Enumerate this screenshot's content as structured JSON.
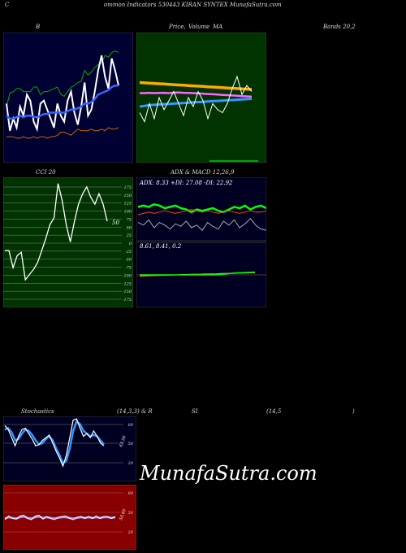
{
  "header": {
    "left": "C",
    "center": "ommon  Indicators 530443 KIRAN  SYNTEX  MunafaSutra.com"
  },
  "labels": {
    "bands_title": "B",
    "price_title_a": "Price,",
    "price_title_b": "Volume",
    "price_title_c": "MA",
    "bands_right": "Bands 20,2",
    "cci_title": "CCI 20",
    "adx_title": "ADX  & MACD 12,26,9",
    "stoch_left": "Stochastics",
    "stoch_mid": "(14,3,3) & R",
    "rsi_mid": "SI",
    "rsi_params": "(14,5",
    "rsi_close": ")"
  },
  "watermark": "MunafaSutra.com",
  "colors": {
    "bands_bg": "#000033",
    "price_bg": "#003300",
    "cci_bg": "#003300",
    "adx_bg": "#000022",
    "stoch_bg": "#000022",
    "rsi_bg": "#880000"
  },
  "chart_data": [
    {
      "id": "bollinger",
      "type": "line",
      "series": [
        {
          "color": "#00aa00",
          "values": [
            94,
            103,
            104,
            106,
            106,
            104,
            104,
            104,
            107,
            107,
            102,
            104,
            104,
            105,
            106,
            107,
            102,
            101,
            104,
            107,
            108,
            110,
            111,
            118,
            115,
            117,
            120,
            122,
            123,
            128,
            127,
            130,
            131,
            130
          ]
        },
        {
          "color": "#ffffff",
          "values": [
            96,
            78,
            86,
            80,
            94,
            88,
            102,
            98,
            84,
            79,
            96,
            98,
            92,
            86,
            80,
            96,
            88,
            84,
            98,
            104,
            90,
            82,
            94,
            110,
            88,
            92,
            104,
            118,
            128,
            114,
            106,
            126,
            118,
            108
          ]
        },
        {
          "color": "#3366ff",
          "values": [
            88,
            86,
            86,
            87,
            88,
            87,
            88,
            88,
            87,
            87,
            88,
            89,
            89,
            90,
            90,
            90,
            90,
            90,
            91,
            92,
            92,
            93,
            94,
            96,
            96,
            97,
            99,
            102,
            103,
            104,
            105,
            107,
            108,
            108
          ]
        },
        {
          "color": "#cc6600",
          "values": [
            74,
            74,
            74,
            73,
            73,
            74,
            73,
            73,
            74,
            73,
            74,
            74,
            73,
            74,
            74,
            75,
            77,
            77,
            76,
            75,
            77,
            79,
            78,
            78,
            78,
            79,
            78,
            78,
            79,
            78,
            80,
            79,
            79,
            80
          ]
        }
      ],
      "ylim": [
        60,
        140
      ]
    },
    {
      "id": "price_ma",
      "type": "line",
      "series": [
        {
          "color": "#ffaa00",
          "values": [
            110,
            109.8,
            109.6,
            109.4,
            109.2,
            109,
            108.8,
            108.6,
            108.4,
            108.2,
            108,
            107.8,
            107.6,
            107.4,
            107.2,
            107,
            106.8,
            106.6,
            106.4,
            106.2,
            106,
            105.8,
            105.6,
            105.4
          ]
        },
        {
          "color": "#ff66ff",
          "values": [
            103,
            103,
            103.2,
            103,
            103.1,
            103.2,
            103,
            103.3,
            103.4,
            103.2,
            103.1,
            103,
            102.8,
            102.6,
            102.4,
            102.2,
            102,
            101.8,
            101.6,
            101.4,
            101.2,
            101,
            100.8,
            100.6
          ]
        },
        {
          "color": "#3399ff",
          "values": [
            94,
            94.5,
            95,
            95.2,
            95.4,
            95.6,
            95.8,
            96,
            96.2,
            96.4,
            96.6,
            96.8,
            97,
            97.2,
            97.4,
            97.6,
            97.8,
            98,
            98.2,
            98.4,
            98.6,
            98.8,
            99,
            99.2
          ]
        },
        {
          "color": "#ffffff",
          "values": [
            90,
            84,
            96,
            86,
            100,
            92,
            98,
            104,
            96,
            88,
            100,
            94,
            104,
            98,
            86,
            96,
            92,
            90,
            96,
            106,
            114,
            102,
            108,
            104
          ]
        }
      ],
      "ylim": [
        60,
        140
      ]
    },
    {
      "id": "cci",
      "type": "line",
      "value_label": "50",
      "yticks": [
        "175",
        "150",
        "125",
        "100",
        "75",
        "50",
        "25",
        "0",
        "-25",
        "-50",
        "-75",
        "-100",
        "-125",
        "-150",
        "-175"
      ],
      "series": [
        {
          "color": "#ffffff",
          "values": [
            -25,
            -25,
            -75,
            -40,
            -30,
            -110,
            -95,
            -80,
            -60,
            -25,
            10,
            50,
            70,
            170,
            120,
            50,
            0,
            60,
            110,
            140,
            160,
            130,
            110,
            140,
            110,
            60
          ]
        }
      ],
      "ylim": [
        -200,
        200
      ]
    },
    {
      "id": "adx",
      "type": "line",
      "text": "ADX: 8.33  +DI: 27.08  -DI: 22.92",
      "series": [
        {
          "name": "+DI",
          "color": "#00ff00",
          "values": [
            26,
            27,
            26,
            28,
            27,
            25,
            26,
            27,
            25,
            24,
            22,
            24,
            23,
            24,
            25,
            23,
            22,
            24,
            26,
            25,
            27,
            24,
            26,
            27,
            25
          ]
        },
        {
          "name": "-DI",
          "color": "#ff4400",
          "values": [
            20,
            21,
            22,
            21,
            22,
            23,
            22,
            21,
            22,
            23,
            24,
            23,
            22,
            23,
            22,
            21,
            22,
            23,
            22,
            21,
            22,
            23,
            22,
            22,
            23
          ]
        },
        {
          "name": "ADX",
          "color": "#aaaaaa",
          "values": [
            14,
            12,
            16,
            10,
            14,
            12,
            9,
            13,
            11,
            15,
            10,
            12,
            8,
            14,
            11,
            9,
            15,
            12,
            16,
            10,
            13,
            17,
            12,
            9,
            8
          ]
        }
      ],
      "ylim": [
        0,
        40
      ]
    },
    {
      "id": "macd",
      "type": "line",
      "text": "8.61,  8.41,  0.2",
      "series": [
        {
          "color": "#ffffff",
          "values": [
            -1,
            -0.8,
            -0.6,
            -0.5,
            -0.3,
            -0.2,
            0,
            0.1,
            0.3,
            0.4,
            0.5,
            0.6,
            0.8,
            0.9,
            1,
            1.2,
            1.3,
            1.5,
            1.6,
            1.8,
            2,
            2.1
          ]
        },
        {
          "color": "#ff6600",
          "values": [
            -1.2,
            -1,
            -0.8,
            -0.7,
            -0.5,
            -0.4,
            -0.2,
            0,
            0.1,
            0.3,
            0.4,
            0.5,
            0.6,
            0.8,
            0.9,
            1,
            1.1,
            1.3,
            1.4,
            1.5,
            1.7,
            1.8
          ]
        },
        {
          "color": "#00ff00",
          "values": [
            0,
            0,
            0,
            0,
            0,
            0,
            0,
            0,
            0,
            0,
            0,
            0,
            0,
            0,
            0,
            0.5,
            1,
            1.5,
            1.8,
            2,
            2.2,
            2.4
          ]
        }
      ],
      "ylim": [
        -20,
        20
      ]
    },
    {
      "id": "stochastics",
      "type": "line",
      "value_label": "63.50",
      "yticks": [
        "80",
        "50",
        "20"
      ],
      "series": [
        {
          "color": "#3399ff",
          "values": [
            72,
            74,
            68,
            56,
            58,
            66,
            72,
            70,
            64,
            56,
            50,
            52,
            58,
            62,
            56,
            44,
            34,
            22,
            26,
            44,
            70,
            84,
            80,
            70,
            66,
            62,
            64,
            62,
            56,
            50
          ]
        },
        {
          "color": "#ffffff",
          "values": [
            78,
            72,
            60,
            48,
            62,
            72,
            74,
            66,
            58,
            48,
            50,
            56,
            60,
            64,
            52,
            40,
            30,
            18,
            34,
            60,
            86,
            88,
            74,
            62,
            66,
            60,
            70,
            62,
            52,
            48
          ]
        }
      ],
      "ylim": [
        0,
        100
      ]
    },
    {
      "id": "rsi",
      "type": "line",
      "value_label": "50.65",
      "yticks": [
        "80",
        "50",
        "20"
      ],
      "series": [
        {
          "color": "#9999ff",
          "values": [
            48,
            50,
            49,
            48,
            50,
            51,
            49,
            48,
            50,
            51,
            49,
            50,
            49,
            48,
            49,
            50,
            50,
            49,
            48,
            49,
            50,
            49,
            50,
            49,
            50,
            49,
            50,
            50,
            49,
            50
          ]
        },
        {
          "color": "#ffffff",
          "values": [
            46,
            52,
            48,
            47,
            52,
            53,
            48,
            46,
            52,
            53,
            47,
            51,
            48,
            46,
            50,
            51,
            52,
            48,
            46,
            50,
            51,
            48,
            51,
            48,
            52,
            48,
            51,
            51,
            48,
            51
          ]
        }
      ],
      "ylim": [
        0,
        100
      ]
    }
  ]
}
